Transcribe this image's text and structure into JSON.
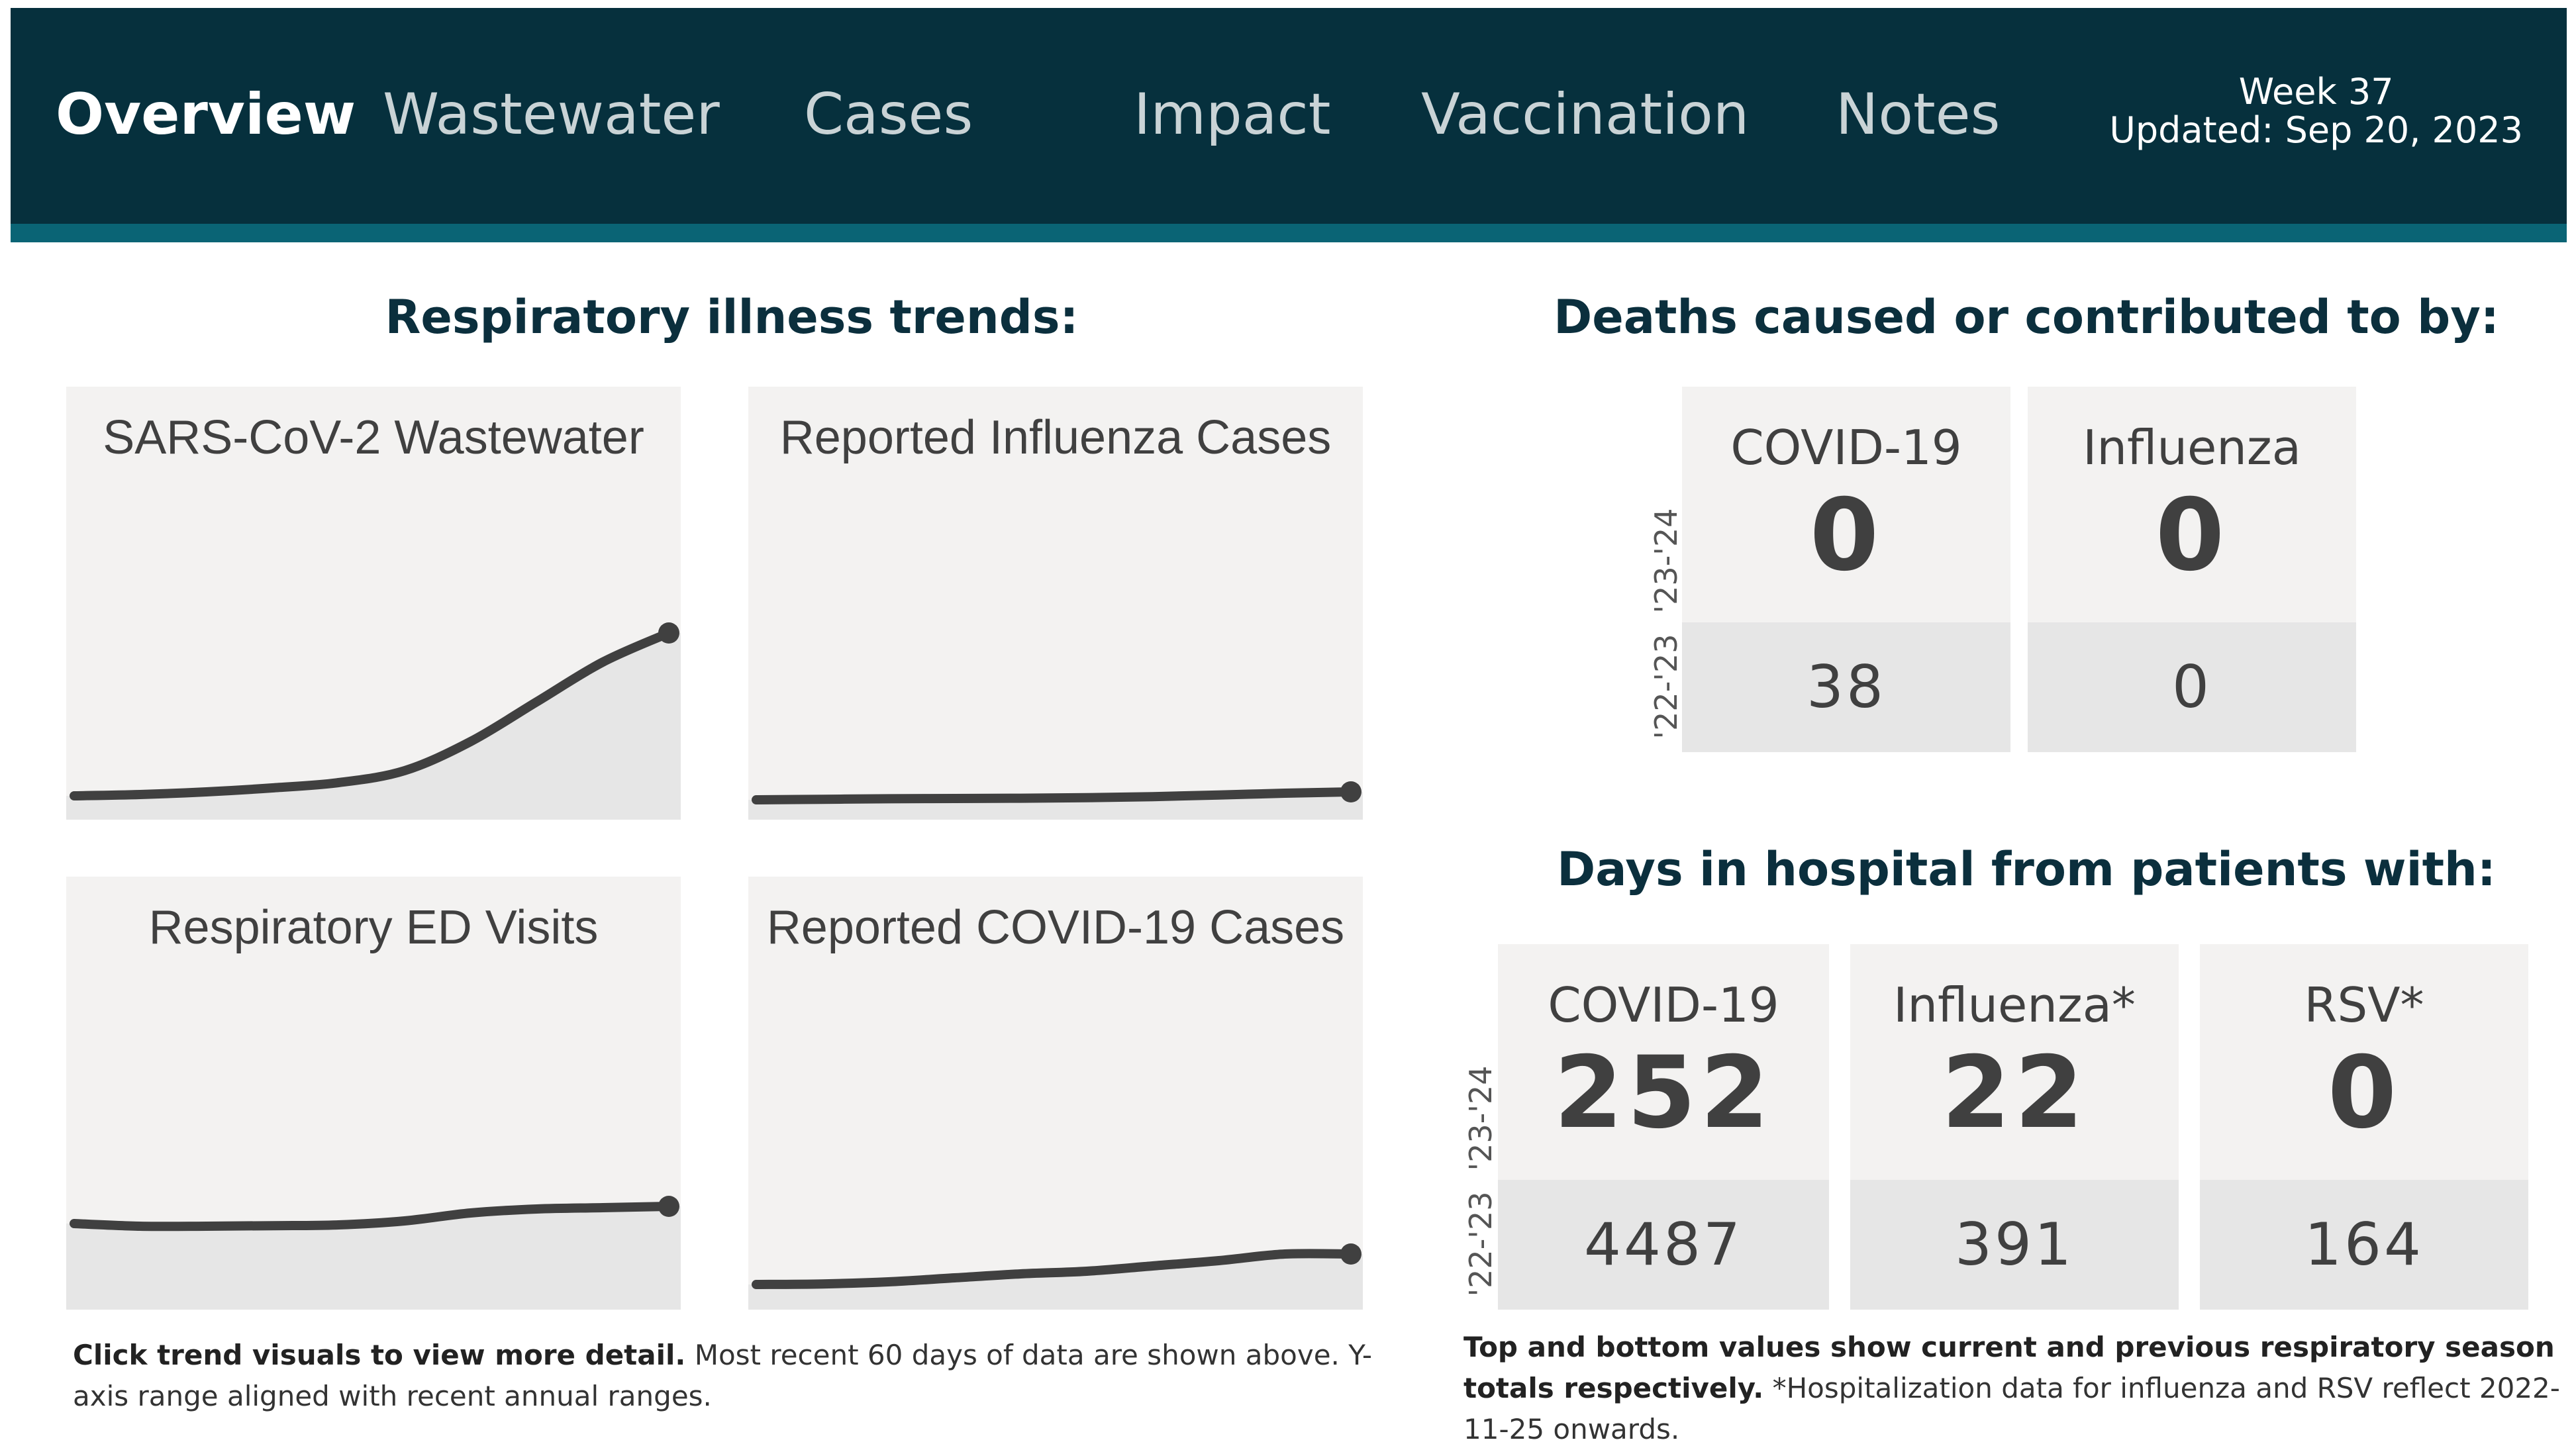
{
  "nav": {
    "tabs": [
      {
        "label": "Overview",
        "active": true
      },
      {
        "label": "Wastewater",
        "active": false
      },
      {
        "label": "Cases",
        "active": false
      },
      {
        "label": "Impact",
        "active": false
      },
      {
        "label": "Vaccination",
        "active": false
      },
      {
        "label": "Notes",
        "active": false
      }
    ],
    "week": "Week 37",
    "updated": "Updated: Sep 20, 2023",
    "colors": {
      "background": "#06303d",
      "stripe": "#0a6475"
    }
  },
  "trends": {
    "title": "Respiratory illness trends:",
    "tiles": [
      {
        "title": "SARS-CoV-2 Wastewater",
        "trend": [
          0.045,
          0.05,
          0.06,
          0.075,
          0.095,
          0.14,
          0.25,
          0.4,
          0.55,
          0.66
        ],
        "end_marker": true
      },
      {
        "title": "Reported Influenza Cases",
        "trend": [
          0.03,
          0.032,
          0.034,
          0.035,
          0.036,
          0.038,
          0.042,
          0.048,
          0.055,
          0.06
        ],
        "end_marker": true
      },
      {
        "title": "Respiratory ED Visits",
        "trend": [
          0.28,
          0.27,
          0.27,
          0.272,
          0.275,
          0.29,
          0.32,
          0.335,
          0.34,
          0.345
        ],
        "end_marker": true
      },
      {
        "title": "Reported COVID-19 Cases",
        "trend": [
          0.05,
          0.052,
          0.06,
          0.075,
          0.09,
          0.1,
          0.12,
          0.14,
          0.165,
          0.165
        ],
        "end_marker": true
      }
    ],
    "footnote_bold": "Click trend visuals to view more detail.",
    "footnote_rest": " Most recent 60 days of data are shown above. Y-axis range aligned with recent annual ranges."
  },
  "deaths": {
    "title": "Deaths caused or contributed to by:",
    "season_current": "'23-'24",
    "season_previous": "'22-'23",
    "cards": [
      {
        "label": "COVID-19",
        "current": "0",
        "previous": "38"
      },
      {
        "label": "Influenza",
        "current": "0",
        "previous": "0"
      }
    ]
  },
  "hospital": {
    "title": "Days in hospital from patients with:",
    "season_current": "'23-'24",
    "season_previous": "'22-'23",
    "cards": [
      {
        "label": "COVID-19",
        "current": "252",
        "previous": "4487"
      },
      {
        "label": "Influenza*",
        "current": "22",
        "previous": "391"
      },
      {
        "label": "RSV*",
        "current": "0",
        "previous": "164"
      }
    ],
    "footnote_bold": "Top and bottom values show current and previous respiratory season totals respectively.",
    "footnote_rest": " *Hospitalization data for influenza and RSV reflect 2022-11-25 onwards."
  }
}
